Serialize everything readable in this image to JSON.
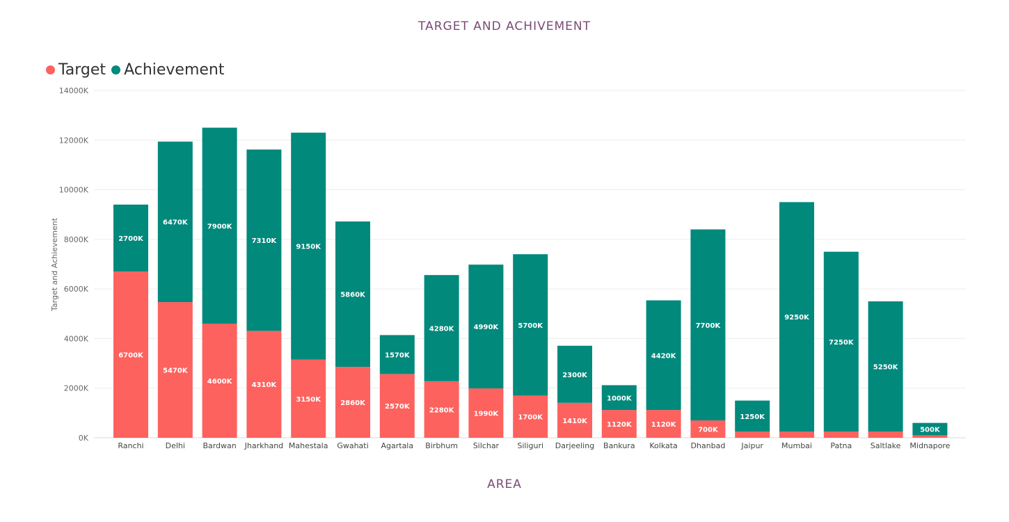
{
  "chart_data": {
    "type": "bar",
    "stacked": true,
    "title": "TARGET AND ACHIVEMENT",
    "xlabel": "AREA",
    "ylabel": "Target and Achievement",
    "ylim": [
      0,
      14000
    ],
    "yticks": [
      "0K",
      "2000K",
      "4000K",
      "6000K",
      "8000K",
      "10000K",
      "12000K",
      "14000K"
    ],
    "ytick_values": [
      0,
      2000,
      4000,
      6000,
      8000,
      10000,
      12000,
      14000
    ],
    "grid": true,
    "legend_position": "top-left",
    "categories": [
      "Ranchi",
      "Delhi",
      "Bardwan",
      "Jharkhand",
      "Mahestala",
      "Gwahati",
      "Agartala",
      "Birbhum",
      "Silchar",
      "Siliguri",
      "Darjeeling",
      "Bankura",
      "Kolkata",
      "Dhanbad",
      "Jaipur",
      "Mumbai",
      "Patna",
      "Saltlake",
      "Midnapore"
    ],
    "series": [
      {
        "name": "Target",
        "color": "#fd625e",
        "values": [
          6700,
          5470,
          4600,
          4310,
          3150,
          2860,
          2570,
          2280,
          1990,
          1700,
          1410,
          1120,
          1120,
          700,
          250,
          250,
          250,
          250,
          100
        ],
        "labels": [
          "6700K",
          "5470K",
          "4600K",
          "4310K",
          "3150K",
          "2860K",
          "2570K",
          "2280K",
          "1990K",
          "1700K",
          "1410K",
          "1120K",
          "1120K",
          "700K",
          "",
          "",
          "",
          "",
          ""
        ]
      },
      {
        "name": "Achievement",
        "color": "#01897c",
        "values": [
          2700,
          6470,
          7900,
          7310,
          9150,
          5860,
          1570,
          4280,
          4990,
          5700,
          2300,
          1000,
          4420,
          7700,
          1250,
          9250,
          7250,
          5250,
          500
        ],
        "labels": [
          "2700K",
          "6470K",
          "7900K",
          "7310K",
          "9150K",
          "5860K",
          "1570K",
          "4280K",
          "4990K",
          "5700K",
          "2300K",
          "1000K",
          "4420K",
          "7700K",
          "1250K",
          "9250K",
          "7250K",
          "5250K",
          "500K"
        ]
      }
    ]
  }
}
